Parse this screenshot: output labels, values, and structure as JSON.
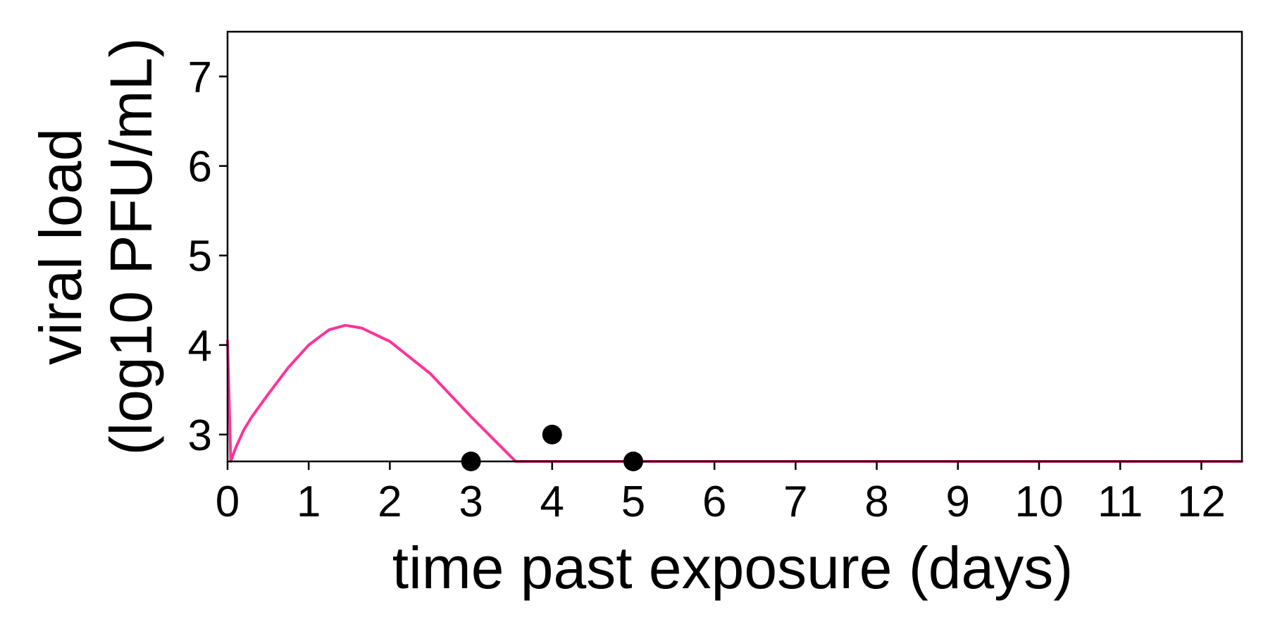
{
  "chart_data": {
    "type": "line",
    "title": "",
    "xlabel": "time past exposure (days)",
    "ylabel_lines": [
      "viral load",
      "(log10 PFU/mL)"
    ],
    "xlim": [
      0,
      12.5
    ],
    "ylim": [
      2.7,
      7.5
    ],
    "x_ticks": [
      0,
      1,
      2,
      3,
      4,
      5,
      6,
      7,
      8,
      9,
      10,
      11,
      12
    ],
    "x_tick_labels": [
      "0",
      "1",
      "2",
      "3",
      "4",
      "5",
      "6",
      "7",
      "8",
      "9",
      "10",
      "11",
      "12"
    ],
    "y_ticks": [
      3,
      4,
      5,
      6,
      7
    ],
    "y_tick_labels": [
      "3",
      "4",
      "5",
      "6",
      "7"
    ],
    "grid": false,
    "legend": "none",
    "series": [
      {
        "kind": "line",
        "color": "#ff3399",
        "x": [
          0,
          0.04,
          0.1,
          0.2,
          0.3,
          0.5,
          0.75,
          1.0,
          1.25,
          1.45,
          1.65,
          2.0,
          2.5,
          3.0,
          3.55,
          12.5
        ],
        "y": [
          4.05,
          2.7,
          2.85,
          3.05,
          3.2,
          3.45,
          3.75,
          4.0,
          4.17,
          4.22,
          4.19,
          4.04,
          3.68,
          3.2,
          2.7,
          2.7
        ]
      },
      {
        "kind": "scatter",
        "color": "#000000",
        "x": [
          3,
          4,
          5
        ],
        "y": [
          2.7,
          3.0,
          2.7
        ]
      }
    ]
  }
}
